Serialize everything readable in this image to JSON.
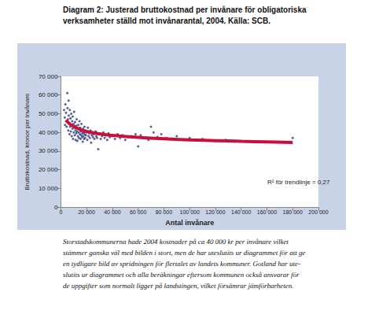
{
  "chart_data": {
    "type": "scatter",
    "title": "Diagram 2: Justerad bruttokostnad per invånare för obligatoriska\nverksamheter ställd mot invånarantal, 2004. Källa: SCB.",
    "x_label": "Antal invånare",
    "y_label": "Bruttokostnad, kronor per invånare",
    "annotation": "R² för trendlinje = 0,27",
    "caption": [
      "Storstadskommunerna hade 2004 kostnader på ca 40 000 kr per invånare vilket",
      "stämmer ganska väl med bilden i stort, men de har uteslutits ur diagrammet för att ge",
      "en tydligare bild av spridningen för flertalet av landets kommuner. Gotland har ute-",
      "slutits ur diagrammet och alla beräkningar eftersom kommunen också ansvarar för",
      "de uppgifter som normalt ligger på landstingen, vilket försämrar jämförbarheten."
    ],
    "xlim": [
      0,
      200000
    ],
    "xticks": [
      0,
      {
        "value": 20000,
        "label": "20 000"
      },
      {
        "value": 40000,
        "label": "40 000"
      },
      {
        "value": 60000,
        "label": "60 000"
      },
      {
        "value": 80000,
        "label": "80 000"
      },
      {
        "value": 100000,
        "label": "100 000"
      },
      {
        "value": 120000,
        "label": "120 000"
      },
      {
        "value": 140000,
        "label": "140 000"
      },
      {
        "value": 160000,
        "label": "160 000"
      },
      {
        "value": 180000,
        "label": "180 000"
      },
      {
        "value": 200000,
        "label": "200 000"
      }
    ],
    "ylim": [
      0,
      70000
    ],
    "yticks": [
      0,
      {
        "value": 10000,
        "label": "10 000"
      },
      {
        "value": 20000,
        "label": "20 000"
      },
      {
        "value": 30000,
        "label": "30 000"
      },
      {
        "value": 40000,
        "label": "40 000"
      },
      {
        "value": 50000,
        "label": "50 000"
      },
      {
        "value": 60000,
        "label": "60 000"
      },
      {
        "value": 70000,
        "label": "70 000"
      }
    ],
    "grid": false,
    "series": [
      {
        "type": "scatter",
        "color": "#2b3a78",
        "marker": "circle",
        "x": [
          2500,
          3000,
          3200,
          3500,
          4000,
          4200,
          4500,
          5000,
          5200,
          5500,
          5800,
          6000,
          6200,
          6500,
          6800,
          7000,
          7200,
          7500,
          7800,
          8000,
          8200,
          8500,
          8800,
          9000,
          9200,
          9500,
          9800,
          10000,
          10300,
          10500,
          10800,
          11000,
          11300,
          11500,
          11800,
          12000,
          12300,
          12500,
          12800,
          13000,
          13300,
          13500,
          13800,
          14000,
          14300,
          14500,
          14800,
          15000,
          15300,
          15500,
          15800,
          16000,
          16300,
          16500,
          16800,
          17000,
          17300,
          17500,
          17800,
          18000,
          18300,
          18500,
          18800,
          19000,
          19500,
          20000,
          20500,
          21000,
          21500,
          22000,
          22500,
          23000,
          23500,
          24000,
          24500,
          25000,
          25500,
          26000,
          27000,
          27500,
          28000,
          29000,
          30000,
          31000,
          32000,
          33000,
          34000,
          35000,
          36000,
          37000,
          38000,
          40000,
          42000,
          44000,
          46000,
          48000,
          50000,
          52000,
          55000,
          58000,
          60000,
          62000,
          65000,
          68000,
          70000,
          72000,
          75000,
          78000,
          82000,
          86000,
          90000,
          95000,
          100000,
          110000,
          120000,
          128000,
          135000,
          180000
        ],
        "values": [
          52000,
          48000,
          44000,
          55000,
          50500,
          46000,
          43000,
          61000,
          53000,
          47000,
          41000,
          57000,
          49000,
          45000,
          39000,
          52000,
          43000,
          47500,
          40500,
          50000,
          44000,
          38000,
          46000,
          42000,
          48500,
          36500,
          44500,
          40000,
          51000,
          42500,
          38500,
          45500,
          41000,
          36000,
          43500,
          39500,
          47000,
          40500,
          35500,
          42000,
          38000,
          44000,
          40000,
          37000,
          41500,
          46000,
          39000,
          42500,
          36500,
          40500,
          38500,
          44500,
          41000,
          37500,
          39500,
          35000,
          42000,
          38000,
          40000,
          36500,
          43000,
          39000,
          37000,
          41000,
          38500,
          40000,
          36000,
          42500,
          38000,
          39500,
          37000,
          41000,
          34500,
          38500,
          40000,
          37500,
          39000,
          36500,
          40500,
          38000,
          37000,
          31000,
          39000,
          36500,
          38000,
          40000,
          37000,
          38500,
          36000,
          39500,
          37500,
          38000,
          36500,
          39000,
          37000,
          38500,
          36000,
          37500,
          38000,
          39000,
          32500,
          38500,
          37000,
          36000,
          43000,
          40000,
          37500,
          39000,
          37000,
          36500,
          38000,
          36000,
          37000,
          36500,
          35500,
          36000,
          35000,
          37000
        ]
      },
      {
        "type": "line",
        "color": "#c8103c",
        "line_style": "solid",
        "x": [
          4000,
          7000,
          10000,
          15000,
          20000,
          30000,
          40000,
          60000,
          80000,
          100000,
          120000,
          140000,
          160000,
          180000
        ],
        "values": [
          46500,
          44500,
          43200,
          41600,
          40500,
          39200,
          38400,
          37300,
          36600,
          36000,
          35600,
          35200,
          34900,
          34600
        ]
      }
    ]
  }
}
